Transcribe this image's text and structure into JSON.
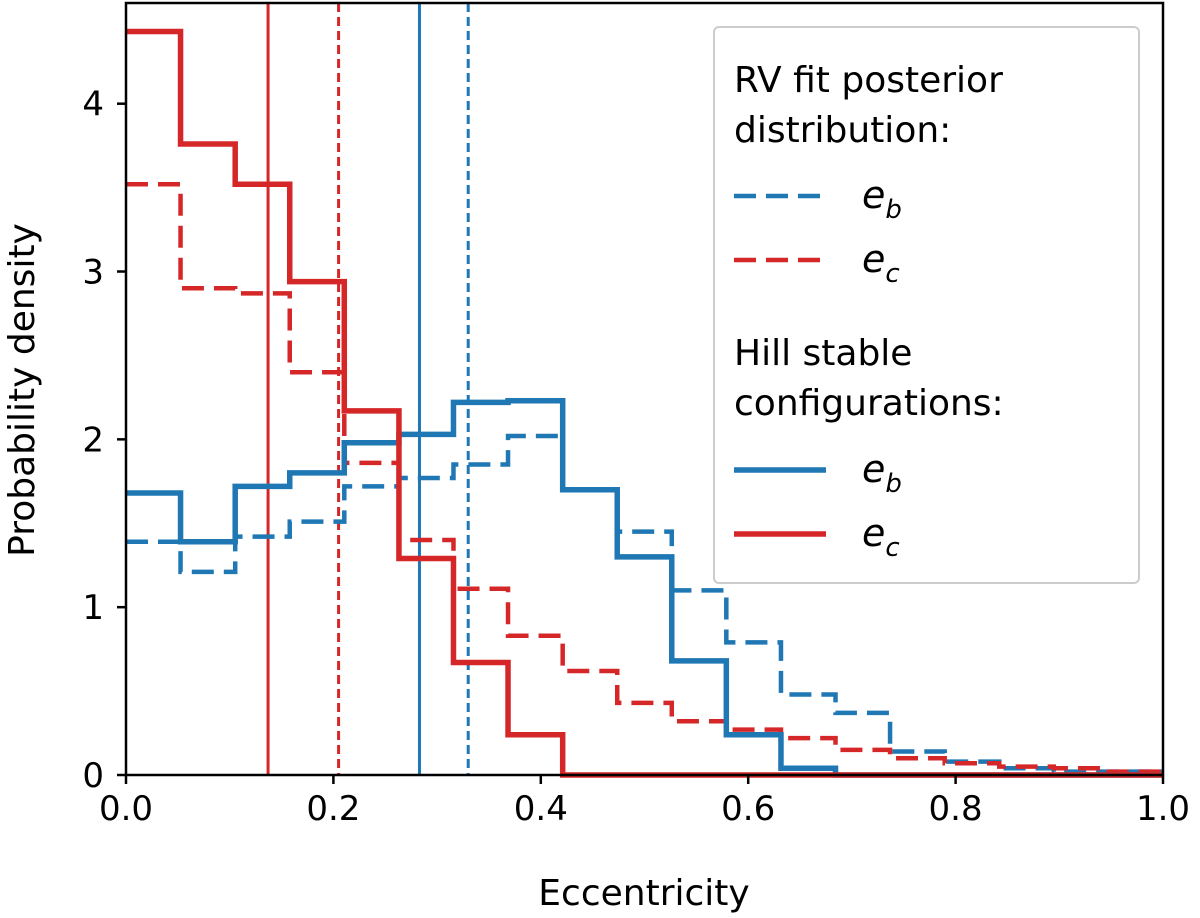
{
  "chart_data": {
    "type": "histogram-step",
    "xlabel": "Eccentricity",
    "ylabel": "Probability density",
    "xlim": [
      0.0,
      1.0
    ],
    "ylim": [
      0.0,
      4.6
    ],
    "xticks": [
      0.0,
      0.2,
      0.4,
      0.6,
      0.8,
      1.0
    ],
    "xtick_labels": [
      "0.0",
      "0.2",
      "0.4",
      "0.6",
      "0.8",
      "1.0"
    ],
    "yticks": [
      0,
      1,
      2,
      3,
      4
    ],
    "ytick_labels": [
      "0",
      "1",
      "2",
      "3",
      "4"
    ],
    "bin_edges": [
      0.0,
      0.0526,
      0.1053,
      0.1579,
      0.2105,
      0.2632,
      0.3158,
      0.3684,
      0.4211,
      0.4737,
      0.5263,
      0.5789,
      0.6316,
      0.6842,
      0.7368,
      0.7895,
      0.8421,
      0.8947,
      0.9474,
      1.0
    ],
    "series": [
      {
        "name": "RV fit posterior e_b",
        "color": "#1f77b4",
        "linestyle": "dashed",
        "values": [
          1.39,
          1.21,
          1.42,
          1.51,
          1.72,
          1.77,
          1.85,
          2.02,
          1.7,
          1.45,
          1.1,
          0.79,
          0.48,
          0.37,
          0.14,
          0.08,
          0.04,
          0.02,
          0.02
        ]
      },
      {
        "name": "RV fit posterior e_c",
        "color": "#d62728",
        "linestyle": "dashed",
        "values": [
          3.52,
          2.9,
          2.87,
          2.4,
          1.86,
          1.4,
          1.11,
          0.83,
          0.62,
          0.43,
          0.32,
          0.27,
          0.22,
          0.15,
          0.1,
          0.07,
          0.05,
          0.04,
          0.02
        ]
      },
      {
        "name": "Hill stable e_b",
        "color": "#1f77b4",
        "linestyle": "solid",
        "values": [
          1.68,
          1.39,
          1.72,
          1.8,
          1.98,
          2.03,
          2.22,
          2.23,
          1.7,
          1.3,
          0.68,
          0.24,
          0.04,
          0.0,
          0.0,
          0.0,
          0.0,
          0.0,
          0.0
        ]
      },
      {
        "name": "Hill stable e_c",
        "color": "#d62728",
        "linestyle": "solid",
        "values": [
          4.43,
          3.76,
          3.52,
          2.94,
          2.17,
          1.29,
          0.67,
          0.24,
          0.0,
          0.0,
          0.0,
          0.0,
          0.0,
          0.0,
          0.0,
          0.0,
          0.0,
          0.0,
          0.0
        ]
      }
    ],
    "vlines": [
      {
        "x": 0.137,
        "color": "#d62728",
        "linestyle": "solid",
        "label": "Hill stable e_c median"
      },
      {
        "x": 0.205,
        "color": "#d62728",
        "linestyle": "dashed",
        "label": "RV fit e_c median"
      },
      {
        "x": 0.283,
        "color": "#1f77b4",
        "linestyle": "solid",
        "label": "Hill stable e_b median"
      },
      {
        "x": 0.33,
        "color": "#1f77b4",
        "linestyle": "dashed",
        "label": "RV fit e_b median"
      }
    ],
    "legend": {
      "placement": "top-right",
      "heading1_line1": "RV fit posterior",
      "heading1_line2": "distribution:",
      "heading2_line1": "Hill stable",
      "heading2_line2": "configurations:",
      "entries": [
        {
          "symbol": "e",
          "sub": "b",
          "color": "#1f77b4",
          "linestyle": "dashed"
        },
        {
          "symbol": "e",
          "sub": "c",
          "color": "#d62728",
          "linestyle": "dashed"
        },
        {
          "symbol": "e",
          "sub": "b",
          "color": "#1f77b4",
          "linestyle": "solid"
        },
        {
          "symbol": "e",
          "sub": "c",
          "color": "#d62728",
          "linestyle": "solid"
        }
      ]
    }
  }
}
